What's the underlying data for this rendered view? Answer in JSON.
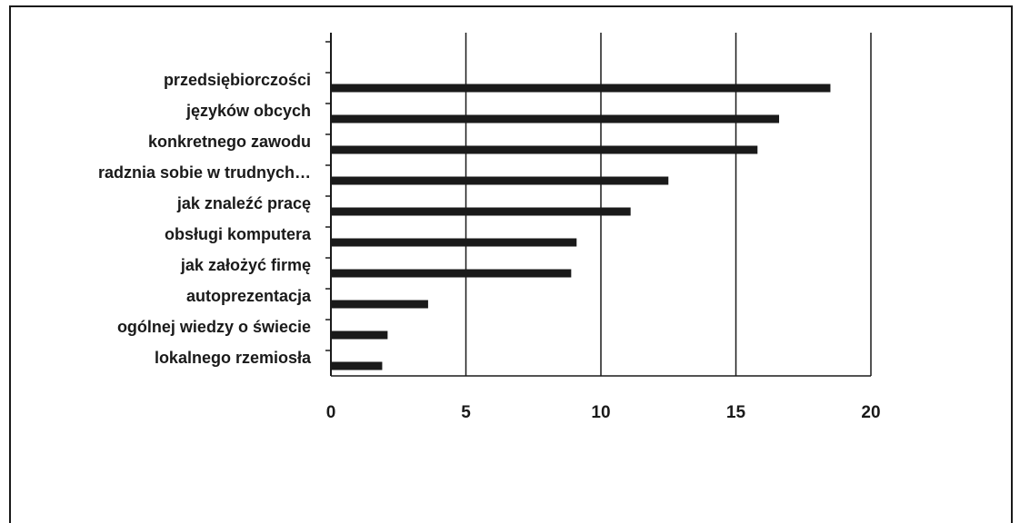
{
  "chart_data": {
    "type": "bar",
    "orientation": "horizontal",
    "categories": [
      "przedsiębiorczości",
      "języków obcych",
      "konkretnego zawodu",
      "radznia sobie w trudnych…",
      "jak znaleźć pracę",
      "obsługi komputera",
      "jak założyć firmę",
      "autoprezentacja",
      "ogólnej wiedzy o świecie",
      "lokalnego rzemiosła"
    ],
    "values": [
      18.5,
      16.6,
      15.8,
      12.5,
      11.1,
      9.1,
      8.9,
      3.6,
      2.1,
      1.9
    ],
    "x_ticks": [
      "0",
      "5",
      "10",
      "15",
      "20"
    ],
    "xlim": [
      0,
      20
    ],
    "grid": "vertical gridlines",
    "legend": "none",
    "colors": {
      "bar": "#1a1a1a",
      "grid": "#1a1a1a"
    }
  }
}
